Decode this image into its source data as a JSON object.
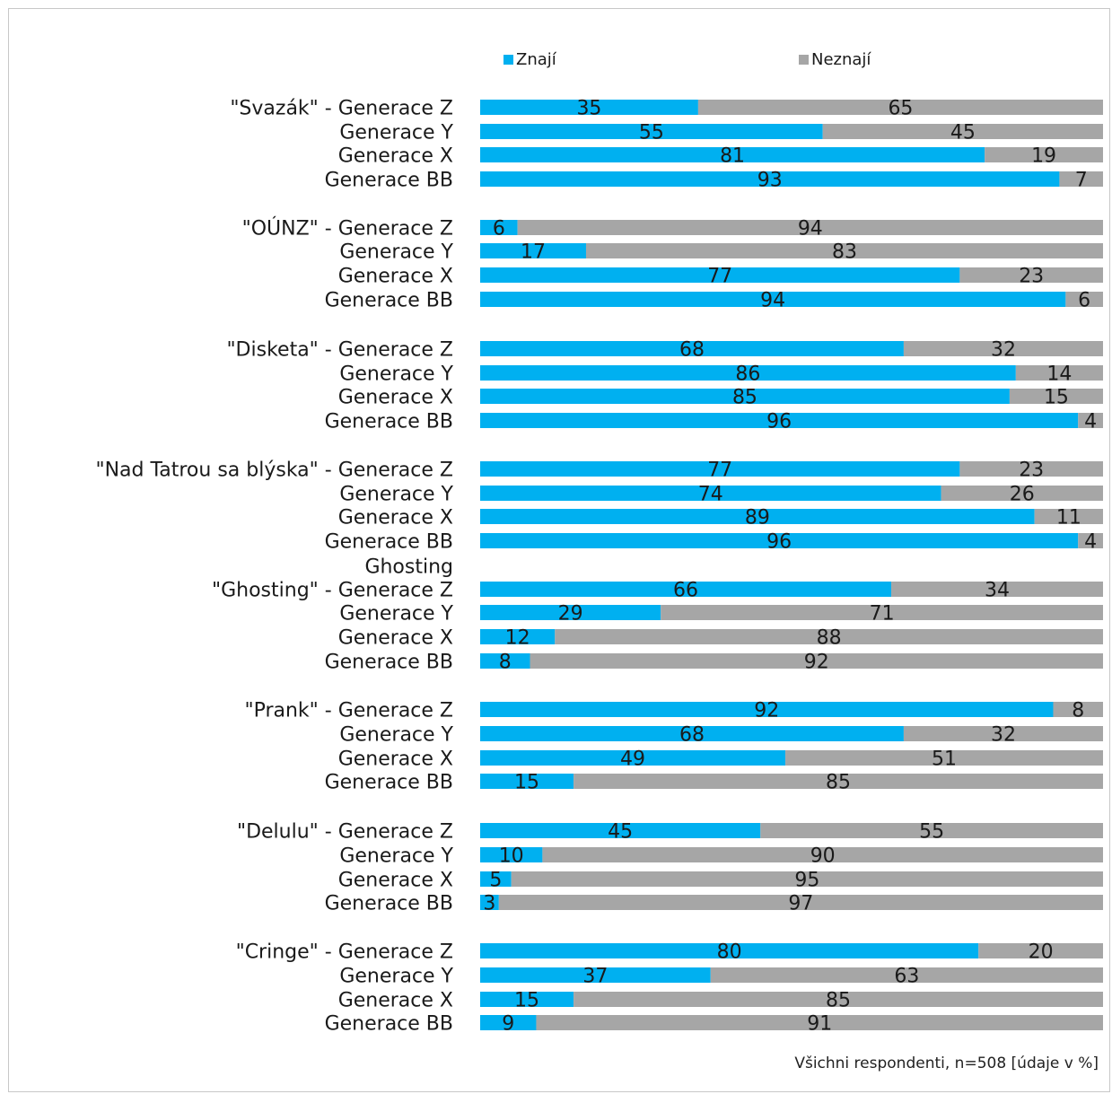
{
  "chart_data": {
    "type": "bar",
    "stacked": true,
    "orientation": "horizontal",
    "xlim": [
      0,
      100
    ],
    "series": [
      {
        "name": "Znají",
        "color": "#00b0f0"
      },
      {
        "name": "Neznají",
        "color": "#a6a6a6"
      }
    ],
    "rows": [
      {
        "label": "\"Svazák\" - Generace Z",
        "values": [
          35,
          65
        ]
      },
      {
        "label": "Generace Y",
        "values": [
          55,
          45
        ]
      },
      {
        "label": "Generace X",
        "values": [
          81,
          19
        ]
      },
      {
        "label": "Generace BB",
        "values": [
          93,
          7
        ]
      },
      {
        "label": "\"OÚNZ\" - Generace Z",
        "values": [
          6,
          94
        ]
      },
      {
        "label": "Generace Y",
        "values": [
          17,
          83
        ]
      },
      {
        "label": "Generace X",
        "values": [
          77,
          23
        ]
      },
      {
        "label": "Generace BB",
        "values": [
          94,
          6
        ]
      },
      {
        "label": "\"Disketa\" - Generace Z",
        "values": [
          68,
          32
        ]
      },
      {
        "label": "Generace Y",
        "values": [
          86,
          14
        ]
      },
      {
        "label": "Generace X",
        "values": [
          85,
          15
        ]
      },
      {
        "label": "Generace BB",
        "values": [
          96,
          4
        ]
      },
      {
        "label": "\"Nad Tatrou sa blýska\" - Generace Z",
        "values": [
          77,
          23
        ]
      },
      {
        "label": "Generace Y",
        "values": [
          74,
          26
        ]
      },
      {
        "label": "Generace X",
        "values": [
          89,
          11
        ]
      },
      {
        "label": "Generace BB",
        "values": [
          96,
          4
        ]
      },
      {
        "label": "Ghosting",
        "values": null
      },
      {
        "label": "\"Ghosting\" - Generace Z",
        "values": [
          66,
          34
        ]
      },
      {
        "label": "Generace Y",
        "values": [
          29,
          71
        ]
      },
      {
        "label": "Generace X",
        "values": [
          12,
          88
        ]
      },
      {
        "label": "Generace BB",
        "values": [
          8,
          92
        ]
      },
      {
        "label": "\"Prank\" - Generace Z",
        "values": [
          92,
          8
        ]
      },
      {
        "label": "Generace Y",
        "values": [
          68,
          32
        ]
      },
      {
        "label": "Generace X",
        "values": [
          49,
          51
        ]
      },
      {
        "label": "Generace BB",
        "values": [
          15,
          85
        ]
      },
      {
        "label": "\"Delulu\" - Generace Z",
        "values": [
          45,
          55
        ]
      },
      {
        "label": "Generace Y",
        "values": [
          10,
          90
        ]
      },
      {
        "label": "Generace X",
        "values": [
          5,
          95
        ]
      },
      {
        "label": "Generace BB",
        "values": [
          3,
          97
        ]
      },
      {
        "label": "\"Cringe\" - Generace Z",
        "values": [
          80,
          20
        ]
      },
      {
        "label": "Generace Y",
        "values": [
          37,
          63
        ]
      },
      {
        "label": "Generace X",
        "values": [
          15,
          85
        ]
      },
      {
        "label": "Generace BB",
        "values": [
          9,
          91
        ]
      }
    ],
    "legend_position": "top",
    "grid": false,
    "footnote": "Všichni respondenti, n=508 [údaje v %]"
  }
}
